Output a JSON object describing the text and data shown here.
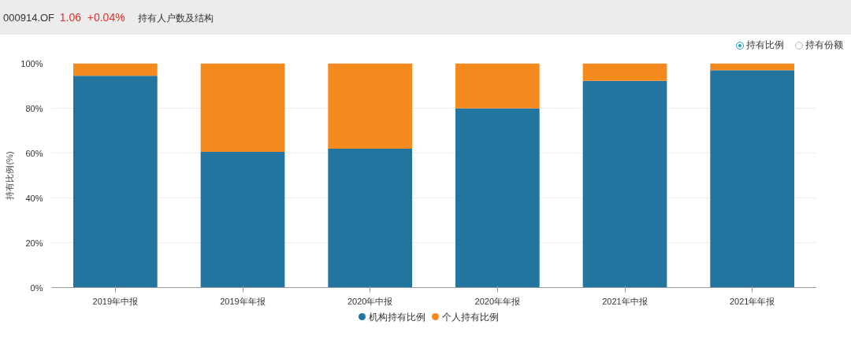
{
  "chart_data": {
    "type": "bar",
    "title": "持有人户数及结构",
    "ylabel": "持有比例(%)",
    "categories": [
      "2019年中报",
      "2019年年报",
      "2020年中报",
      "2020年年报",
      "2021年中报",
      "2021年年报"
    ],
    "stacked": true,
    "series": [
      {
        "name": "机构持有比例",
        "color": "#21759f",
        "values": [
          94.5,
          60.5,
          61.9,
          79.9,
          92.2,
          96.9
        ]
      },
      {
        "name": "个人持有比例",
        "color": "#f58a1f",
        "values": [
          5.5,
          39.5,
          38.1,
          20.1,
          7.8,
          3.1
        ]
      }
    ],
    "ylim": [
      0,
      100
    ],
    "yticks": [
      {
        "value": 0,
        "label": "0%"
      },
      {
        "value": 20,
        "label": "20%"
      },
      {
        "value": 40,
        "label": "40%"
      },
      {
        "value": 60,
        "label": "60%"
      },
      {
        "value": 80,
        "label": "80%"
      },
      {
        "value": 100,
        "label": "100%"
      }
    ],
    "grid": "y",
    "legend": "bottom",
    "annotations": [
      "000914.OF",
      "1.06",
      "+0.04%",
      "持有比例",
      "持有份额"
    ]
  }
}
